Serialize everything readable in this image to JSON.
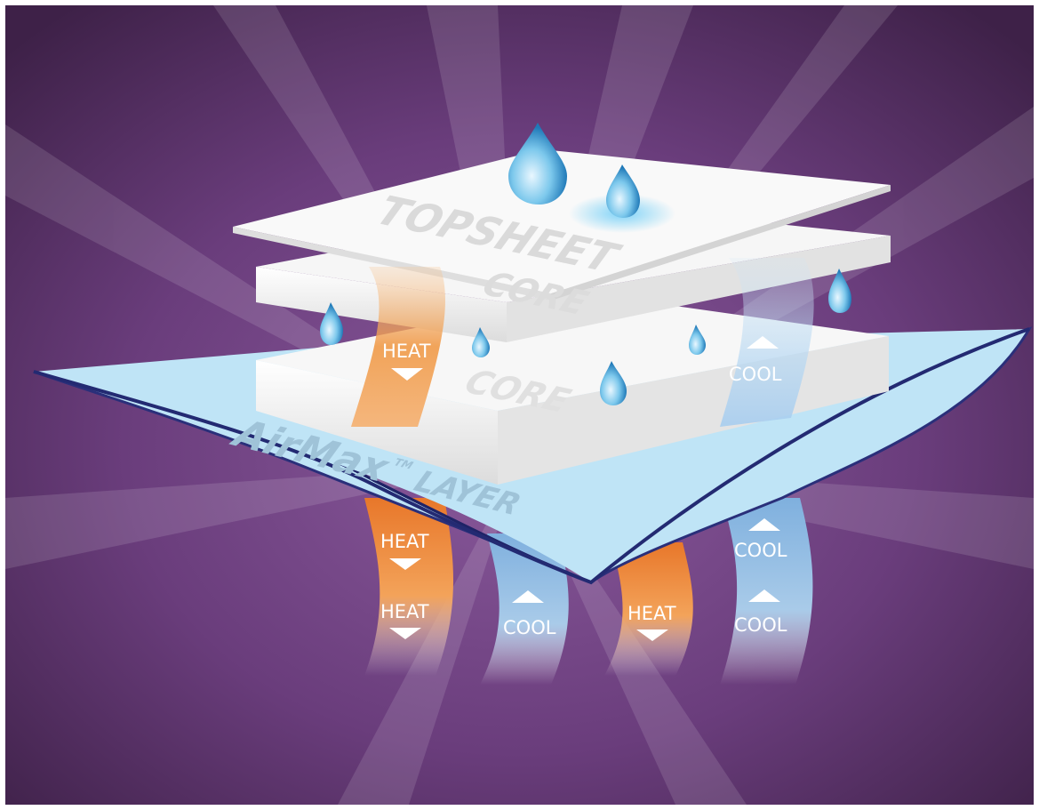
{
  "diagram": {
    "layers": {
      "topsheet": "TOPSHEET",
      "core_upper": "CORE",
      "core_lower": "CORE",
      "airmax_name": "AirMax",
      "airmax_tm": "TM",
      "airmax_suffix": "LAYER"
    },
    "flows": {
      "heat": "HEAT",
      "cool": "COOL"
    },
    "colors": {
      "background_purple": "#6a3d7c",
      "airmax_blue": "#bfe4f6",
      "heat_orange": "#f0913c",
      "cool_blue": "#8db8e0",
      "sheet_white": "#f4f4f4"
    },
    "icons": [
      "water-drop-icon",
      "arrow-down-icon",
      "arrow-up-icon"
    ]
  }
}
